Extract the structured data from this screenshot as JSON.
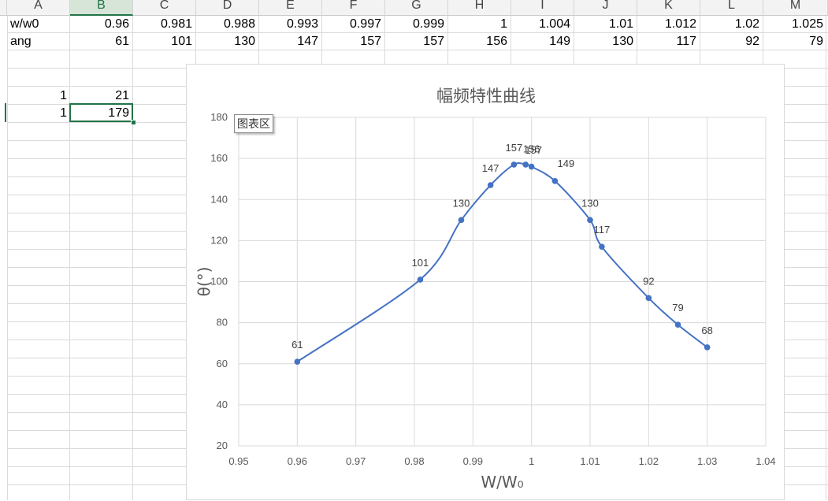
{
  "sheet": {
    "columns": [
      "A",
      "B",
      "C",
      "D",
      "E",
      "F",
      "G",
      "H",
      "I",
      "J",
      "K",
      "L",
      "M"
    ],
    "selected_column": "B",
    "row1": {
      "label": "w/w0",
      "values": [
        "0.96",
        "0.981",
        "0.988",
        "0.993",
        "0.997",
        "0.999",
        "1",
        "1.004",
        "1.01",
        "1.012",
        "1.02",
        "1.025"
      ]
    },
    "row2": {
      "label": "ang",
      "values": [
        "61",
        "101",
        "130",
        "147",
        "157",
        "157",
        "156",
        "149",
        "130",
        "117",
        "92",
        "79"
      ]
    },
    "row5": {
      "a": "1",
      "b": "21"
    },
    "row6": {
      "a": "1",
      "b": "179"
    },
    "accent_color": "#217346"
  },
  "chart": {
    "title": "幅频特性曲线",
    "tooltip": "图表区",
    "line_color": "#4472c4"
  },
  "chart_data": {
    "type": "scatter",
    "title": "幅频特性曲线",
    "xlabel": "W/W₀",
    "ylabel": "θ(°)",
    "xlim": [
      0.95,
      1.04
    ],
    "ylim": [
      20,
      180
    ],
    "xticks": [
      "0.95",
      "0.96",
      "0.97",
      "0.98",
      "0.99",
      "1",
      "1.01",
      "1.02",
      "1.03",
      "1.04"
    ],
    "yticks": [
      "20",
      "40",
      "60",
      "80",
      "100",
      "120",
      "140",
      "160",
      "180"
    ],
    "grid": true,
    "smooth_line": true,
    "data_labels": true,
    "x": [
      0.96,
      0.981,
      0.988,
      0.993,
      0.997,
      0.999,
      1.0,
      1.004,
      1.01,
      1.012,
      1.02,
      1.025,
      1.03
    ],
    "y": [
      61,
      101,
      130,
      147,
      157,
      157,
      156,
      149,
      130,
      117,
      92,
      79,
      68
    ]
  }
}
